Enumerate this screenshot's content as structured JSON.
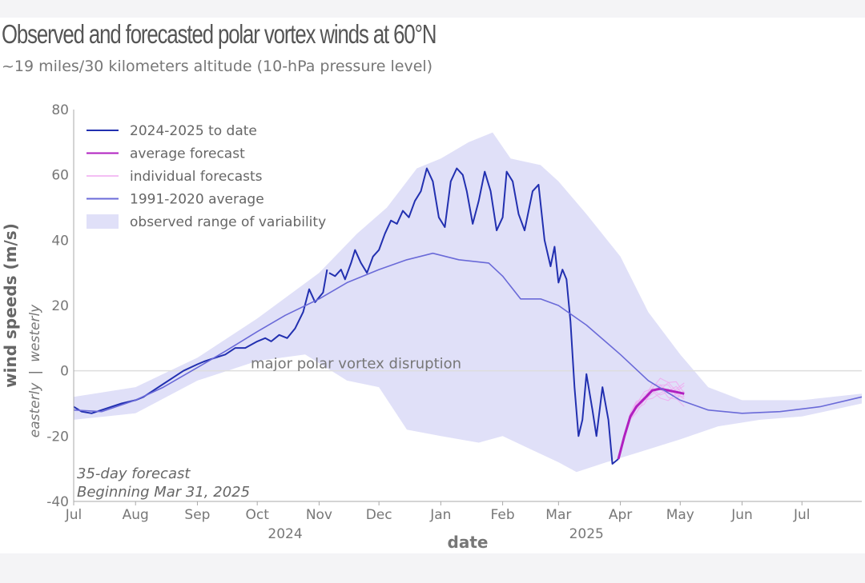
{
  "title": "Observed and forecasted polar vortex winds at 60°N",
  "subtitle": "~19 miles/30 kilometers altitude (10-hPa pressure level)",
  "colors": {
    "observed": "#2230b0",
    "forecast_avg": "#b020c0",
    "forecast_indiv": "#f0a8f0",
    "climatology": "#6a6ad8",
    "range_fill": "#e0e0f8",
    "zero_line": "#dddddd"
  },
  "chart_data": {
    "type": "line",
    "xlabel": "date",
    "ylabel": "wind speeds (m/s)",
    "ylabel_sub_left": "easterly",
    "ylabel_sub_sep": "|",
    "ylabel_sub_right": "westerly",
    "ylim": [
      -40,
      80
    ],
    "yticks": [
      "-40",
      "-20",
      "0",
      "20",
      "40",
      "60",
      "80"
    ],
    "xticks": [
      {
        "label": "Jul",
        "date": "2024-07-01"
      },
      {
        "label": "Aug",
        "date": "2024-08-01"
      },
      {
        "label": "Sep",
        "date": "2024-09-01"
      },
      {
        "label": "Oct",
        "date": "2024-10-01"
      },
      {
        "label": "Nov",
        "date": "2024-11-01"
      },
      {
        "label": "Dec",
        "date": "2024-12-01"
      },
      {
        "label": "Jan",
        "date": "2025-01-01"
      },
      {
        "label": "Feb",
        "date": "2025-02-01"
      },
      {
        "label": "Mar",
        "date": "2025-03-01"
      },
      {
        "label": "Apr",
        "date": "2025-04-01"
      },
      {
        "label": "May",
        "date": "2025-05-01"
      },
      {
        "label": "Jun",
        "date": "2025-06-01"
      },
      {
        "label": "Jul",
        "date": "2025-07-01"
      }
    ],
    "year_labels": [
      {
        "label": "2024",
        "date": "2024-10-15"
      },
      {
        "label": "2025",
        "date": "2025-03-15"
      }
    ],
    "zero_line_label": "major polar vortex disruption",
    "forecast_note_line1": "35-day forecast",
    "forecast_note_line2": "Beginning Mar 31, 2025",
    "legend": {
      "position": "top-left",
      "entries": [
        {
          "label": "2024-2025 to date",
          "key": "observed"
        },
        {
          "label": "average forecast",
          "key": "forecast_avg"
        },
        {
          "label": "individual forecasts",
          "key": "forecast_indiv"
        },
        {
          "label": "1991-2020 average",
          "key": "climatology"
        },
        {
          "label": "observed range of variability",
          "key": "range_fill"
        }
      ]
    },
    "series": [
      {
        "name": "2024-2025 to date",
        "points": [
          [
            "2024-07-01",
            -11
          ],
          [
            "2024-07-05",
            -12.5
          ],
          [
            "2024-07-10",
            -13
          ],
          [
            "2024-07-15",
            -12
          ],
          [
            "2024-07-20",
            -11
          ],
          [
            "2024-07-25",
            -10
          ],
          [
            "2024-08-01",
            -9
          ],
          [
            "2024-08-05",
            -8
          ],
          [
            "2024-08-10",
            -6
          ],
          [
            "2024-08-15",
            -4
          ],
          [
            "2024-08-20",
            -2
          ],
          [
            "2024-08-25",
            0
          ],
          [
            "2024-09-01",
            2
          ],
          [
            "2024-09-05",
            3
          ],
          [
            "2024-09-10",
            4
          ],
          [
            "2024-09-15",
            5
          ],
          [
            "2024-09-20",
            7
          ],
          [
            "2024-09-25",
            7
          ],
          [
            "2024-10-01",
            9
          ],
          [
            "2024-10-05",
            10
          ],
          [
            "2024-10-08",
            9
          ],
          [
            "2024-10-12",
            11
          ],
          [
            "2024-10-16",
            10
          ],
          [
            "2024-10-20",
            13
          ],
          [
            "2024-10-24",
            18
          ],
          [
            "2024-10-27",
            25
          ],
          [
            "2024-10-30",
            21
          ],
          [
            "2024-11-03",
            24
          ],
          [
            "2024-11-05",
            31
          ]
        ]
      },
      {
        "name": "2024-2025 to date",
        "points": [
          [
            "2024-11-06",
            30
          ],
          [
            "2024-11-09",
            29
          ],
          [
            "2024-11-12",
            31
          ],
          [
            "2024-11-14",
            28
          ],
          [
            "2024-11-17",
            33
          ],
          [
            "2024-11-19",
            37
          ],
          [
            "2024-11-22",
            33
          ],
          [
            "2024-11-25",
            30
          ],
          [
            "2024-11-28",
            35
          ],
          [
            "2024-12-01",
            37
          ],
          [
            "2024-12-04",
            42
          ],
          [
            "2024-12-07",
            46
          ],
          [
            "2024-12-10",
            45
          ],
          [
            "2024-12-13",
            49
          ],
          [
            "2024-12-16",
            47
          ],
          [
            "2024-12-19",
            52
          ],
          [
            "2024-12-22",
            55
          ],
          [
            "2024-12-25",
            62
          ],
          [
            "2024-12-28",
            58
          ],
          [
            "2024-12-31",
            47
          ],
          [
            "2025-01-03",
            44
          ],
          [
            "2025-01-06",
            58
          ],
          [
            "2025-01-09",
            62
          ],
          [
            "2025-01-12",
            60
          ],
          [
            "2025-01-14",
            55
          ],
          [
            "2025-01-17",
            45
          ],
          [
            "2025-01-20",
            52
          ],
          [
            "2025-01-23",
            61
          ],
          [
            "2025-01-26",
            55
          ],
          [
            "2025-01-29",
            43
          ],
          [
            "2025-02-01",
            47
          ],
          [
            "2025-02-03",
            61
          ],
          [
            "2025-02-06",
            58
          ],
          [
            "2025-02-09",
            48
          ],
          [
            "2025-02-12",
            43
          ],
          [
            "2025-02-16",
            55
          ],
          [
            "2025-02-19",
            57
          ],
          [
            "2025-02-22",
            40
          ],
          [
            "2025-02-25",
            32
          ],
          [
            "2025-02-27",
            38
          ],
          [
            "2025-03-01",
            27
          ],
          [
            "2025-03-03",
            31
          ],
          [
            "2025-03-05",
            28
          ],
          [
            "2025-03-07",
            15
          ],
          [
            "2025-03-09",
            -5
          ],
          [
            "2025-03-11",
            -20
          ],
          [
            "2025-03-13",
            -15
          ],
          [
            "2025-03-15",
            -1
          ],
          [
            "2025-03-18",
            -12
          ],
          [
            "2025-03-20",
            -20
          ],
          [
            "2025-03-23",
            -5
          ],
          [
            "2025-03-26",
            -15
          ],
          [
            "2025-03-28",
            -28.5
          ],
          [
            "2025-03-31",
            -27
          ]
        ]
      },
      {
        "name": "average forecast",
        "points": [
          [
            "2025-03-31",
            -27
          ],
          [
            "2025-04-03",
            -20
          ],
          [
            "2025-04-06",
            -14
          ],
          [
            "2025-04-09",
            -11
          ],
          [
            "2025-04-13",
            -8.5
          ],
          [
            "2025-04-17",
            -6
          ],
          [
            "2025-04-21",
            -5.5
          ],
          [
            "2025-04-25",
            -6
          ],
          [
            "2025-04-29",
            -6.5
          ],
          [
            "2025-05-03",
            -7
          ]
        ]
      },
      {
        "name": "1991-2020 average",
        "points": [
          [
            "2024-07-01",
            -12
          ],
          [
            "2024-07-15",
            -12.5
          ],
          [
            "2024-08-01",
            -9
          ],
          [
            "2024-08-15",
            -5
          ],
          [
            "2024-09-01",
            1
          ],
          [
            "2024-09-15",
            6
          ],
          [
            "2024-10-01",
            12
          ],
          [
            "2024-10-15",
            17
          ],
          [
            "2024-11-01",
            22
          ],
          [
            "2024-11-15",
            27
          ],
          [
            "2024-12-01",
            31
          ],
          [
            "2024-12-15",
            34
          ],
          [
            "2024-12-28",
            36
          ],
          [
            "2025-01-10",
            34
          ],
          [
            "2025-01-25",
            33
          ],
          [
            "2025-02-01",
            29
          ],
          [
            "2025-02-10",
            22
          ],
          [
            "2025-02-20",
            22
          ],
          [
            "2025-03-01",
            20
          ],
          [
            "2025-03-15",
            14
          ],
          [
            "2025-04-01",
            5
          ],
          [
            "2025-04-15",
            -3
          ],
          [
            "2025-05-01",
            -9
          ],
          [
            "2025-05-15",
            -12
          ],
          [
            "2025-06-01",
            -13
          ],
          [
            "2025-06-20",
            -12.5
          ],
          [
            "2025-07-10",
            -11
          ],
          [
            "2025-07-31",
            -8
          ]
        ]
      },
      {
        "name": "observed range of variability",
        "upper": [
          [
            "2024-07-01",
            -8
          ],
          [
            "2024-08-01",
            -5
          ],
          [
            "2024-09-01",
            4
          ],
          [
            "2024-10-01",
            16
          ],
          [
            "2024-11-01",
            30
          ],
          [
            "2024-11-20",
            42
          ],
          [
            "2024-12-05",
            50
          ],
          [
            "2024-12-20",
            62
          ],
          [
            "2025-01-01",
            65
          ],
          [
            "2025-01-15",
            70
          ],
          [
            "2025-01-27",
            73
          ],
          [
            "2025-02-05",
            65
          ],
          [
            "2025-02-20",
            63
          ],
          [
            "2025-03-01",
            58
          ],
          [
            "2025-03-15",
            48
          ],
          [
            "2025-04-01",
            35
          ],
          [
            "2025-04-15",
            18
          ],
          [
            "2025-05-01",
            5
          ],
          [
            "2025-05-15",
            -5
          ],
          [
            "2025-06-01",
            -9
          ],
          [
            "2025-07-01",
            -9
          ],
          [
            "2025-07-31",
            -7
          ]
        ],
        "lower": [
          [
            "2024-07-01",
            -15
          ],
          [
            "2024-08-01",
            -13
          ],
          [
            "2024-09-01",
            -3
          ],
          [
            "2024-10-01",
            3
          ],
          [
            "2024-10-25",
            5
          ],
          [
            "2024-11-15",
            -3
          ],
          [
            "2024-12-01",
            -5
          ],
          [
            "2024-12-15",
            -18
          ],
          [
            "2025-01-01",
            -20
          ],
          [
            "2025-01-20",
            -22
          ],
          [
            "2025-02-01",
            -20
          ],
          [
            "2025-02-15",
            -24
          ],
          [
            "2025-03-01",
            -28
          ],
          [
            "2025-03-10",
            -31
          ],
          [
            "2025-03-25",
            -28
          ],
          [
            "2025-04-10",
            -25
          ],
          [
            "2025-05-01",
            -21
          ],
          [
            "2025-05-20",
            -17
          ],
          [
            "2025-06-10",
            -15
          ],
          [
            "2025-07-01",
            -14
          ],
          [
            "2025-07-31",
            -10
          ]
        ]
      }
    ]
  }
}
